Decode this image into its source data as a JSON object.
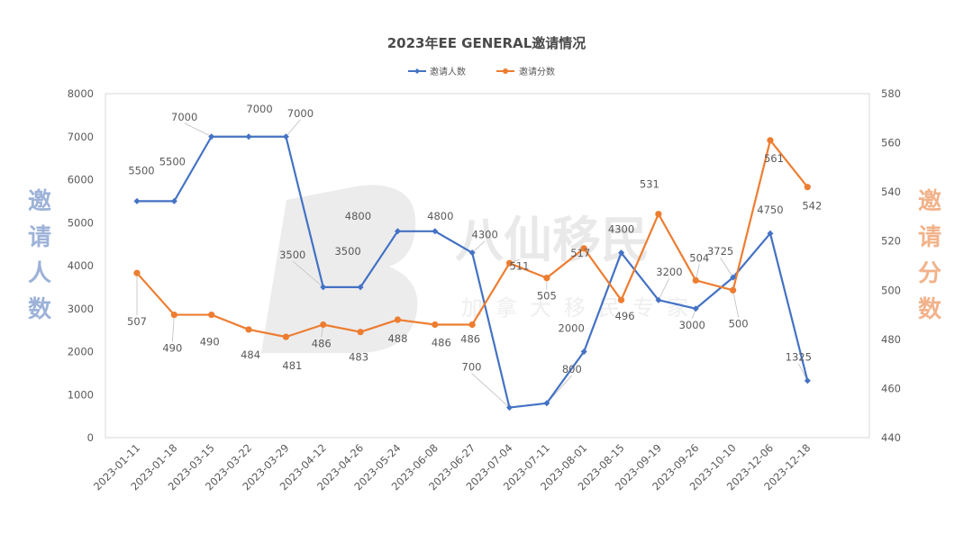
{
  "chart_data": {
    "type": "line",
    "title": "2023年EE GENERAL邀请情况",
    "categories": [
      "2023-01-11",
      "2023-01-18",
      "2023-03-15",
      "2023-03-22",
      "2023-03-29",
      "2023-04-12",
      "2023-04-26",
      "2023-05-24",
      "2023-06-08",
      "2023-06-27",
      "2023-07-04",
      "2023-07-11",
      "2023-08-01",
      "2023-08-15",
      "2023-09-19",
      "2023-09-26",
      "2023-10-10",
      "2023-12-06",
      "2023-12-18"
    ],
    "series": [
      {
        "name": "邀请人数",
        "axis": "left",
        "color": "#4472C4",
        "values": [
          5500,
          5500,
          7000,
          7000,
          7000,
          3500,
          3500,
          4800,
          4800,
          4300,
          700,
          800,
          2000,
          4300,
          3200,
          3000,
          3725,
          4750,
          1325
        ]
      },
      {
        "name": "邀请分数",
        "axis": "right",
        "color": "#ED7D31",
        "values": [
          507,
          490,
          490,
          484,
          481,
          486,
          483,
          488,
          486,
          486,
          511,
          505,
          517,
          496,
          531,
          504,
          500,
          561,
          542
        ]
      }
    ],
    "ylabel_left": "邀请人数",
    "ylabel_right": "邀请分数",
    "ylim_left": [
      0,
      8000
    ],
    "ylim_right": [
      440,
      580
    ],
    "yticks_left": [
      "0",
      "1000",
      "2000",
      "3000",
      "4000",
      "5000",
      "6000",
      "7000",
      "8000"
    ],
    "yticks_right": [
      "440",
      "460",
      "480",
      "500",
      "520",
      "540",
      "560",
      "580"
    ],
    "legend_position": "top-center",
    "grid": false,
    "axis_title_colors": {
      "left": "#9DB2D8",
      "right": "#F2B28A"
    }
  },
  "watermark": {
    "text": "八仙移民",
    "subtitle": "加拿大移民专家"
  }
}
